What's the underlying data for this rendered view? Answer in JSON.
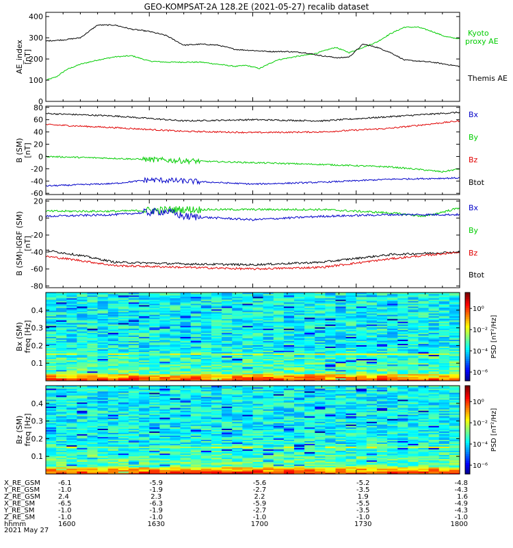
{
  "title": "GEO-KOMPSAT-2A 128.2E (2021-05-27) recalib dataset",
  "colors": {
    "black": "#000000",
    "red": "#e00000",
    "green": "#00cc00",
    "blue": "#0000c8",
    "legend_green": "#00cc00"
  },
  "chart_data": [
    {
      "type": "line",
      "panel": "ae",
      "ylabel": "AE_index\n[nT]",
      "ylim": [
        0,
        420
      ],
      "yticks": [
        0,
        100,
        200,
        300,
        400
      ],
      "xlim": [
        0,
        120
      ],
      "series": [
        {
          "name": "Kyoto proxy AE",
          "color": "green",
          "x": [
            0,
            3,
            6,
            10,
            15,
            20,
            25,
            30,
            35,
            40,
            45,
            50,
            55,
            58,
            62,
            67,
            72,
            78,
            84,
            88,
            92,
            96,
            100,
            104,
            108,
            112,
            116,
            120
          ],
          "values": [
            100,
            115,
            150,
            175,
            195,
            210,
            215,
            190,
            185,
            185,
            185,
            175,
            165,
            170,
            155,
            195,
            210,
            225,
            255,
            230,
            255,
            280,
            320,
            350,
            350,
            330,
            305,
            295
          ]
        },
        {
          "name": "Themis AE",
          "color": "black",
          "x": [
            0,
            5,
            10,
            15,
            20,
            25,
            30,
            35,
            40,
            45,
            50,
            55,
            60,
            65,
            70,
            75,
            80,
            85,
            88,
            92,
            96,
            100,
            104,
            108,
            112,
            116,
            120
          ],
          "values": [
            285,
            290,
            300,
            360,
            360,
            340,
            330,
            310,
            265,
            270,
            265,
            245,
            240,
            235,
            235,
            230,
            215,
            205,
            210,
            270,
            255,
            230,
            195,
            190,
            185,
            175,
            165
          ]
        }
      ],
      "legend": [
        "Kyoto",
        "proxy AE",
        "Themis AE"
      ]
    },
    {
      "type": "line",
      "panel": "bsm",
      "ylabel": "B (SM)\n[nT]",
      "ylim": [
        -62,
        82
      ],
      "yticks": [
        -60,
        -40,
        -20,
        0,
        20,
        40,
        60,
        80
      ],
      "xlim": [
        0,
        120
      ],
      "series": [
        {
          "name": "Btot",
          "color": "black",
          "x": [
            0,
            20,
            40,
            60,
            80,
            100,
            120
          ],
          "values": [
            70,
            66,
            58,
            60,
            58,
            65,
            72
          ]
        },
        {
          "name": "Bz",
          "color": "red",
          "x": [
            0,
            20,
            40,
            60,
            80,
            100,
            120
          ],
          "values": [
            52,
            47,
            41,
            39,
            40,
            46,
            58
          ]
        },
        {
          "name": "By",
          "color": "green",
          "x": [
            0,
            20,
            40,
            60,
            80,
            100,
            110,
            115,
            120
          ],
          "values": [
            0,
            -3,
            -7,
            -10,
            -13,
            -17,
            -22,
            -25,
            -20
          ]
        },
        {
          "name": "Bx",
          "color": "blue",
          "x": [
            0,
            20,
            30,
            40,
            60,
            80,
            100,
            120
          ],
          "values": [
            -48,
            -44,
            -38,
            -40,
            -45,
            -42,
            -37,
            -35
          ]
        }
      ],
      "legend": [
        "Bx",
        "By",
        "Bz",
        "Btot"
      ]
    },
    {
      "type": "line",
      "panel": "bdiff",
      "ylabel": "B (SM)-IGRF (SM)\n[nT]",
      "ylim": [
        -82,
        22
      ],
      "yticks": [
        -80,
        -60,
        -40,
        -20,
        0,
        20
      ],
      "xlim": [
        0,
        120
      ],
      "series": [
        {
          "name": "By",
          "color": "green",
          "x": [
            0,
            20,
            40,
            60,
            80,
            100,
            110,
            120
          ],
          "values": [
            8,
            8,
            10,
            10,
            10,
            6,
            2,
            12
          ]
        },
        {
          "name": "Bx",
          "color": "blue",
          "x": [
            0,
            20,
            35,
            40,
            60,
            80,
            100,
            120
          ],
          "values": [
            2,
            4,
            8,
            2,
            -2,
            2,
            4,
            4
          ]
        },
        {
          "name": "Btot",
          "color": "black",
          "x": [
            0,
            10,
            20,
            40,
            60,
            80,
            100,
            120
          ],
          "values": [
            -38,
            -44,
            -52,
            -54,
            -55,
            -52,
            -43,
            -40
          ]
        },
        {
          "name": "Bz",
          "color": "red",
          "x": [
            0,
            10,
            20,
            40,
            60,
            80,
            100,
            120
          ],
          "values": [
            -45,
            -50,
            -56,
            -58,
            -60,
            -58,
            -48,
            -40
          ]
        }
      ],
      "legend": [
        "Bx",
        "By",
        "Bz",
        "Btot"
      ]
    },
    {
      "type": "heatmap",
      "panel": "spec_bx",
      "ylabel": "Bx (SM)\nfreq [Hz]",
      "ylim": [
        0,
        0.5
      ],
      "yticks": [
        0.1,
        0.2,
        0.3,
        0.4
      ],
      "colorbar_label": "PSD [nT²/Hz]",
      "colorbar_ticks": [
        "10⁰",
        "10⁻²",
        "10⁻⁴",
        "10⁻⁶"
      ]
    },
    {
      "type": "heatmap",
      "panel": "spec_bz",
      "ylabel": "Bz (SM)\nfreq [Hz]",
      "ylim": [
        0,
        0.5
      ],
      "yticks": [
        0.1,
        0.2,
        0.3,
        0.4
      ],
      "colorbar_label": "PSD [nT²/Hz]",
      "colorbar_ticks": [
        "10⁰",
        "10⁻²",
        "10⁻⁴",
        "10⁻⁶"
      ]
    }
  ],
  "orbit_table": {
    "rows": [
      {
        "label": "X_RE_GSM",
        "values": [
          "-6.1",
          "-5.9",
          "-5.6",
          "-5.2",
          "-4.8"
        ]
      },
      {
        "label": "Y_RE_GSM",
        "values": [
          "-1.0",
          "-1.9",
          "-2.7",
          "-3.5",
          "-4.3"
        ]
      },
      {
        "label": "Z_RE_GSM",
        "values": [
          "2.4",
          "2.3",
          "2.2",
          "1.9",
          "1.6"
        ]
      },
      {
        "label": "X_RE_SM",
        "values": [
          "-6.5",
          "-6.3",
          "-5.9",
          "-5.5",
          "-4.9"
        ]
      },
      {
        "label": "Y_RE_SM",
        "values": [
          "-1.0",
          "-1.9",
          "-2.7",
          "-3.5",
          "-4.3"
        ]
      },
      {
        "label": "Z_RE_SM",
        "values": [
          "-1.0",
          "-1.0",
          "-1.0",
          "-1.0",
          "-1.0"
        ]
      },
      {
        "label": "hhmm",
        "values": [
          "1600",
          "1630",
          "1700",
          "1730",
          "1800"
        ]
      }
    ],
    "date": "2021 May 27"
  }
}
